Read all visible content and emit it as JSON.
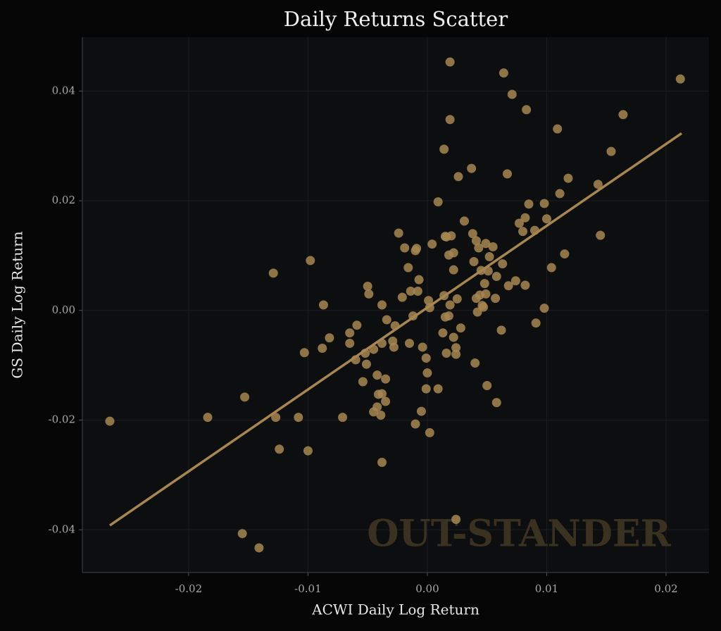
{
  "chart_data": {
    "type": "scatter",
    "title": "Daily Returns Scatter",
    "xlabel": "ACWI Daily Log Return",
    "ylabel": "GS Daily Log Return",
    "annotation": "OUT-STANDER",
    "color": "#a78652",
    "grid": true,
    "xlim": [
      -0.0289,
      0.0236
    ],
    "ylim": [
      -0.0478,
      0.0498
    ],
    "xticks": [
      -0.02,
      -0.01,
      {
        "value": 0,
        "label": "0.00"
      },
      0.01,
      0.02
    ],
    "yticks": [
      -0.04,
      -0.02,
      {
        "value": 0,
        "label": "0.00"
      },
      0.02,
      0.04
    ],
    "x": [
      -0.0266,
      -0.0184,
      -0.0153,
      -0.0155,
      -0.0141,
      -0.0129,
      -0.0127,
      -0.0124,
      -0.0108,
      -0.0103,
      -0.01,
      -0.0098,
      -0.0088,
      -0.0087,
      -0.0082,
      -0.0065,
      -0.0065,
      -0.0059,
      -0.006,
      -0.0071,
      -0.0054,
      -0.0052,
      -0.0051,
      -0.0049,
      -0.005,
      -0.0045,
      -0.0045,
      -0.0042,
      -0.0042,
      -0.0041,
      -0.0038,
      -0.0039,
      -0.0038,
      -0.0038,
      -0.0038,
      -0.0035,
      -0.0035,
      -0.0034,
      -0.0029,
      -0.0028,
      -0.0027,
      -0.0024,
      -0.0021,
      -0.0019,
      -0.0016,
      -0.0015,
      -0.0014,
      -0.0012,
      -0.001,
      -0.001,
      -0.0009,
      -0.0008,
      -0.0007,
      -0.0005,
      -0.0004,
      -0.0001,
      -0.0001,
      0,
      0.0001,
      0.0002,
      0.0002,
      0.0004,
      0.0009,
      0.0009,
      0.0013,
      0.0014,
      0.0014,
      0.0015,
      0.0015,
      0.0016,
      0.0016,
      0.0018,
      0.0018,
      0.0019,
      0.0019,
      0.0019,
      0.002,
      0.0022,
      0.0022,
      0.0022,
      0.0024,
      0.0024,
      0.0024,
      0.0025,
      0.0026,
      0.0028,
      0.0031,
      0.0037,
      0.0038,
      0.0039,
      0.004,
      0.0041,
      0.0041,
      0.0042,
      0.0043,
      0.0044,
      0.0045,
      0.0046,
      0.0047,
      0.0048,
      0.0049,
      0.0049,
      0.005,
      0.0051,
      0.0052,
      0.0055,
      0.0057,
      0.0058,
      0.0058,
      0.0062,
      0.0063,
      0.0064,
      0.0067,
      0.0068,
      0.0071,
      0.0074,
      0.0077,
      0.008,
      0.0082,
      0.0082,
      0.0083,
      0.0085,
      0.009,
      0.0091,
      0.0098,
      0.0098,
      0.01,
      0.0104,
      0.0109,
      0.0111,
      0.0115,
      0.0118,
      0.0143,
      0.0145,
      0.0154,
      0.0164,
      0.0212
    ],
    "y": [
      -0.0202,
      -0.0195,
      -0.0158,
      -0.0407,
      -0.0433,
      0.0068,
      -0.0195,
      -0.0253,
      -0.0195,
      -0.0077,
      -0.0256,
      0.0091,
      -0.0069,
      0.001,
      -0.005,
      -0.0041,
      -0.006,
      -0.0027,
      -0.009,
      -0.0195,
      -0.013,
      -0.0078,
      -0.0098,
      0.003,
      0.0044,
      -0.0071,
      -0.0185,
      -0.0118,
      -0.0176,
      -0.0153,
      -0.006,
      -0.0191,
      0.001,
      -0.0277,
      -0.0152,
      -0.0125,
      -0.0166,
      -0.0017,
      -0.0056,
      -0.0067,
      -0.0028,
      0.0141,
      0.0024,
      0.0114,
      0.0078,
      -0.006,
      0.0035,
      -0.001,
      0.0109,
      -0.0207,
      0.0113,
      0.0035,
      0.0056,
      -0.0184,
      -0.0067,
      -0.0087,
      -0.0143,
      -0.0114,
      0.0018,
      -0.0223,
      0.0005,
      0.0121,
      -0.0143,
      0.0198,
      -0.0041,
      0.0294,
      0.0027,
      0.0135,
      -0.0012,
      -0.0078,
      0.0134,
      0.0101,
      -0.001,
      0.0453,
      0.0348,
      0.001,
      0.0136,
      0.0105,
      0.0074,
      -0.0049,
      -0.0068,
      -0.0381,
      -0.008,
      0.0021,
      0.0244,
      -0.0032,
      0.0163,
      0.0259,
      0.014,
      0.0089,
      -0.0096,
      0.0022,
      0.0127,
      -0.0003,
      0.0114,
      0.0028,
      0.0073,
      0.0009,
      0.0006,
      0.0049,
      0.0122,
      0.003,
      -0.0137,
      0.0072,
      0.0098,
      0.0116,
      0.0022,
      -0.0168,
      0.0062,
      -0.0036,
      0.0085,
      0.0433,
      0.0249,
      0.0045,
      0.0394,
      0.0054,
      0.0159,
      0.0144,
      0.0169,
      0.0046,
      0.0366,
      0.0194,
      0.0146,
      -0.0023,
      0.0004,
      0.0195,
      0.0167,
      0.0078,
      0.0331,
      0.0213,
      0.0103,
      0.0241,
      0.023,
      0.0137,
      0.029,
      0.0357,
      0.0422
    ],
    "trendline": {
      "x": [
        -0.0266,
        0.0213
      ],
      "y": [
        -0.0392,
        0.0323
      ],
      "color": "#a78652"
    }
  }
}
